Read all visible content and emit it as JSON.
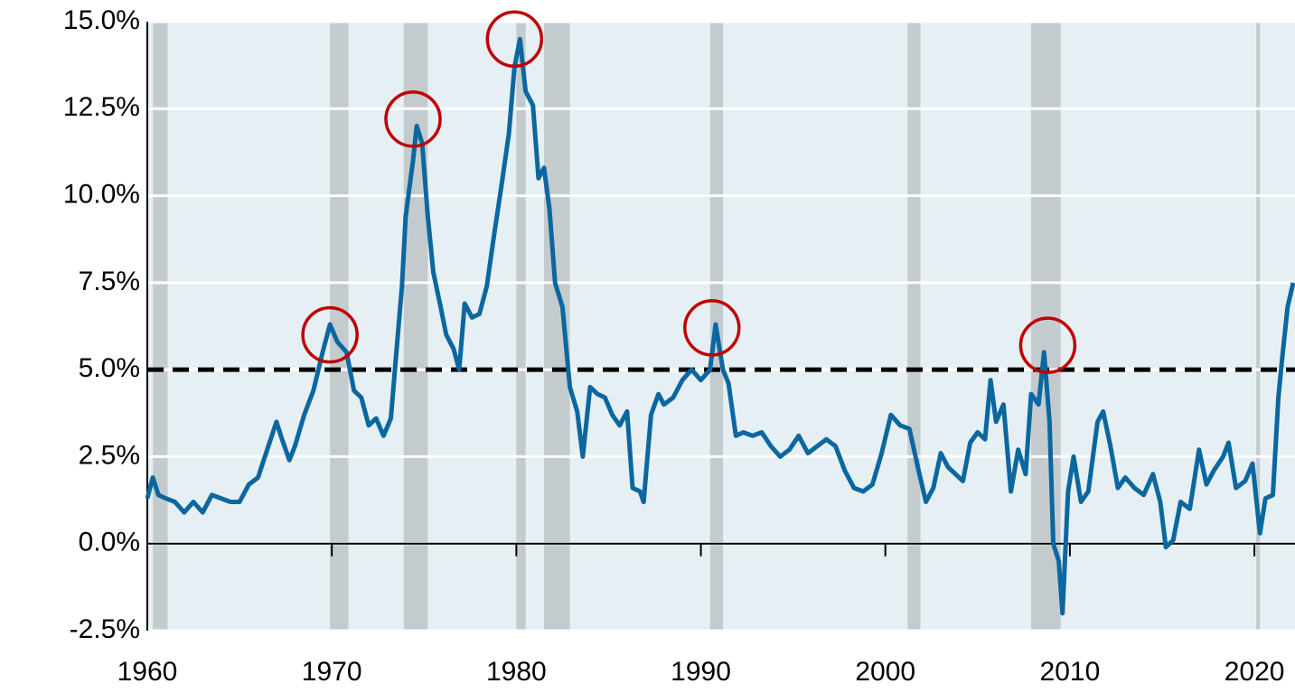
{
  "chart_data": {
    "type": "line",
    "x": [
      1960,
      1960.3,
      1960.6,
      1961,
      1961.5,
      1962,
      1962.5,
      1963,
      1963.5,
      1964,
      1964.5,
      1965,
      1965.5,
      1966,
      1966.5,
      1967,
      1967.3,
      1967.7,
      1968,
      1968.5,
      1969,
      1969.5,
      1969.9,
      1970.3,
      1970.8,
      1971.2,
      1971.6,
      1972,
      1972.4,
      1972.8,
      1973.2,
      1973.5,
      1973.8,
      1974,
      1974.2,
      1974.4,
      1974.6,
      1974.9,
      1975.2,
      1975.5,
      1975.9,
      1976.2,
      1976.6,
      1976.9,
      1977.2,
      1977.6,
      1978,
      1978.4,
      1978.8,
      1979.2,
      1979.6,
      1979.9,
      1980.2,
      1980.5,
      1980.9,
      1981.2,
      1981.5,
      1981.8,
      1982.1,
      1982.5,
      1982.9,
      1983.3,
      1983.6,
      1984,
      1984.4,
      1984.8,
      1985.2,
      1985.6,
      1986,
      1986.3,
      1986.7,
      1986.9,
      1987.3,
      1987.7,
      1988,
      1988.5,
      1989,
      1989.5,
      1990,
      1990.5,
      1990.8,
      1991.2,
      1991.5,
      1991.9,
      1992.3,
      1992.8,
      1993.3,
      1993.8,
      1994.3,
      1994.8,
      1995.3,
      1995.8,
      1996.3,
      1996.8,
      1997.3,
      1997.8,
      1998.3,
      1998.8,
      1999.3,
      1999.8,
      2000.3,
      2000.8,
      2001.3,
      2001.8,
      2002.2,
      2002.6,
      2003,
      2003.4,
      2003.8,
      2004.2,
      2004.6,
      2005,
      2005.4,
      2005.7,
      2006,
      2006.4,
      2006.8,
      2007.2,
      2007.6,
      2007.9,
      2008.3,
      2008.6,
      2008.9,
      2009.1,
      2009.4,
      2009.6,
      2009.9,
      2010.2,
      2010.6,
      2011,
      2011.5,
      2011.8,
      2012.2,
      2012.6,
      2013,
      2013.5,
      2014,
      2014.5,
      2014.9,
      2015.2,
      2015.6,
      2016,
      2016.5,
      2017,
      2017.4,
      2017.8,
      2018.3,
      2018.6,
      2019,
      2019.5,
      2019.9,
      2020.3,
      2020.6,
      2021,
      2021.3,
      2021.5,
      2021.8,
      2022.1
    ],
    "series": [
      {
        "color": "#0b67a0",
        "values": [
          1.3,
          1.9,
          1.4,
          1.3,
          1.2,
          0.9,
          1.2,
          0.9,
          1.4,
          1.3,
          1.2,
          1.2,
          1.7,
          1.9,
          2.7,
          3.5,
          3.0,
          2.4,
          2.8,
          3.7,
          4.4,
          5.5,
          6.3,
          5.8,
          5.5,
          4.4,
          4.2,
          3.4,
          3.6,
          3.1,
          3.6,
          5.5,
          7.4,
          9.4,
          10.2,
          11.0,
          12.0,
          11.5,
          9.4,
          7.8,
          6.8,
          6.0,
          5.6,
          5.0,
          6.9,
          6.5,
          6.6,
          7.4,
          8.9,
          10.3,
          11.8,
          13.7,
          14.5,
          13.0,
          12.6,
          10.5,
          10.8,
          9.6,
          7.5,
          6.8,
          4.5,
          3.8,
          2.5,
          4.5,
          4.3,
          4.2,
          3.7,
          3.4,
          3.8,
          1.6,
          1.5,
          1.2,
          3.7,
          4.3,
          4.0,
          4.2,
          4.7,
          5.0,
          4.7,
          5.0,
          6.3,
          5.0,
          4.6,
          3.1,
          3.2,
          3.1,
          3.2,
          2.8,
          2.5,
          2.7,
          3.1,
          2.6,
          2.8,
          3.0,
          2.8,
          2.1,
          1.6,
          1.5,
          1.7,
          2.6,
          3.7,
          3.4,
          3.3,
          2.1,
          1.2,
          1.6,
          2.6,
          2.2,
          2.0,
          1.8,
          2.9,
          3.2,
          3.0,
          4.7,
          3.5,
          4.0,
          1.5,
          2.7,
          2.0,
          4.3,
          4.0,
          5.5,
          3.5,
          0.0,
          -0.5,
          -2.0,
          1.5,
          2.5,
          1.2,
          1.5,
          3.5,
          3.8,
          2.8,
          1.6,
          1.9,
          1.6,
          1.4,
          2.0,
          1.2,
          -0.1,
          0.1,
          1.2,
          1.0,
          2.7,
          1.7,
          2.1,
          2.5,
          2.9,
          1.6,
          1.8,
          2.3,
          0.3,
          1.3,
          1.4,
          4.2,
          5.3,
          6.8,
          7.5
        ]
      }
    ],
    "xlim": [
      1960,
      2022.2
    ],
    "xticks": [
      1960,
      1970,
      1980,
      1990,
      2000,
      2010,
      2020
    ],
    "ylim": [
      -2.5,
      15
    ],
    "yticks": [
      {
        "value": -2.5,
        "label": "-2.5%"
      },
      {
        "value": 0,
        "label": "0.0%"
      },
      {
        "value": 2.5,
        "label": "2.5%"
      },
      {
        "value": 5,
        "label": "5.0%"
      },
      {
        "value": 7.5,
        "label": "7.5%"
      },
      {
        "value": 10,
        "label": "10.0%"
      },
      {
        "value": 12.5,
        "label": "12.5%"
      },
      {
        "value": 15,
        "label": "15.0%"
      }
    ],
    "grid": true,
    "threshold": 5,
    "recessions": [
      [
        1960.3,
        1961.1
      ],
      [
        1969.9,
        1970.9
      ],
      [
        1973.9,
        1975.2
      ],
      [
        1980.0,
        1980.5
      ],
      [
        1981.5,
        1982.9
      ],
      [
        1990.5,
        1991.2
      ],
      [
        2001.2,
        2001.9
      ],
      [
        2007.9,
        2009.5
      ],
      [
        2020.1,
        2020.3
      ]
    ],
    "highlights": [
      {
        "x": 1969.9,
        "y": 6.0
      },
      {
        "x": 1974.4,
        "y": 12.2
      },
      {
        "x": 1979.9,
        "y": 14.5
      },
      {
        "x": 1990.6,
        "y": 6.2
      },
      {
        "x": 2008.8,
        "y": 5.7
      }
    ]
  }
}
